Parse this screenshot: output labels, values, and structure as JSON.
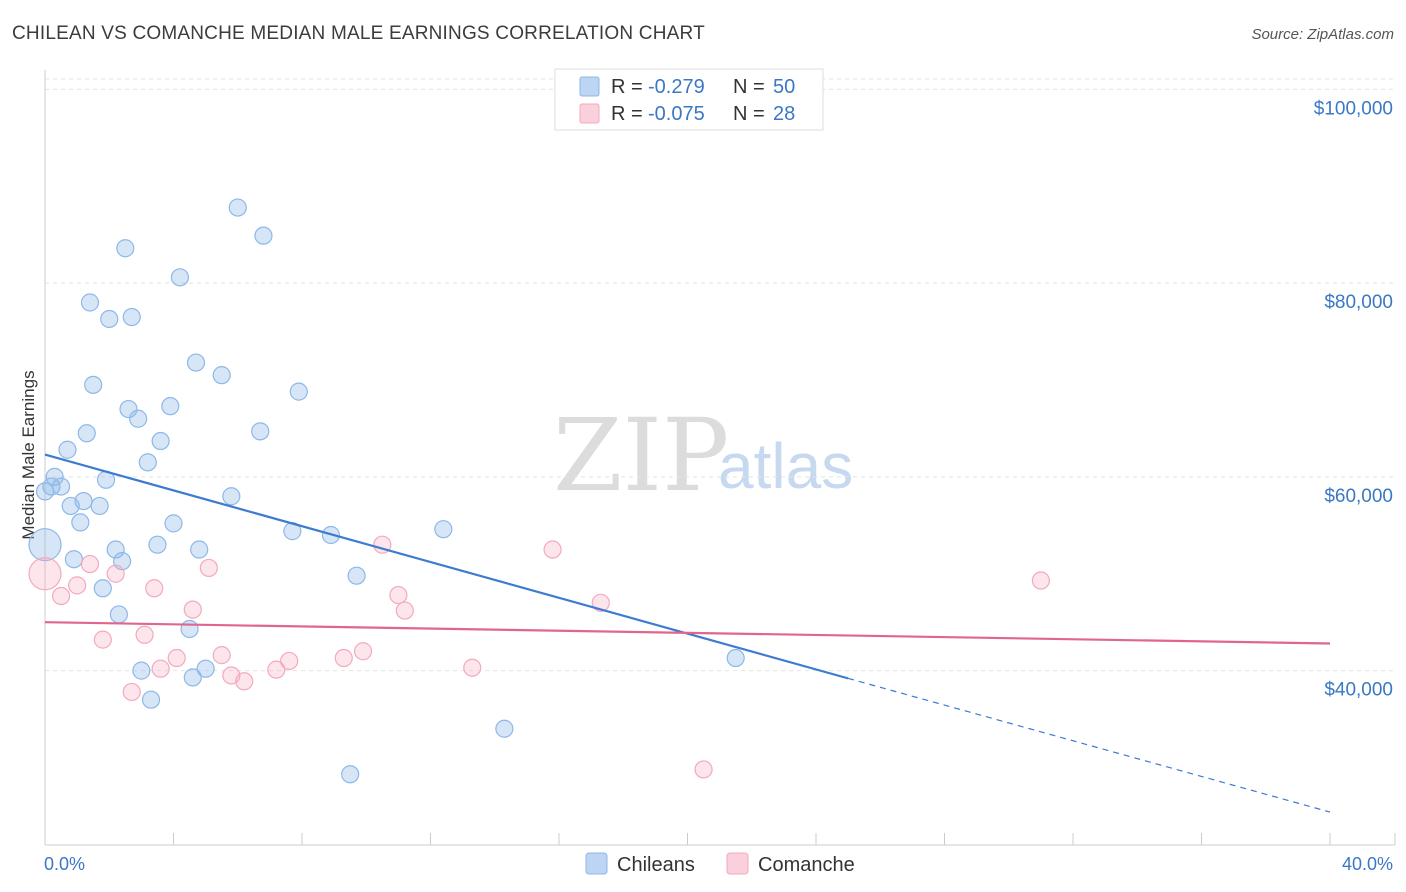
{
  "chart_data": {
    "type": "scatter",
    "title": "CHILEAN VS COMANCHE MEDIAN MALE EARNINGS CORRELATION CHART",
    "source": "Source: ZipAtlas.com",
    "xlabel": "",
    "ylabel": "Median Male Earnings",
    "xlim": [
      0,
      40
    ],
    "ylim": [
      22000,
      102000
    ],
    "x_tick_labels": [
      "0.0%",
      "40.0%"
    ],
    "y_ticks": [
      40000,
      60000,
      80000,
      100000
    ],
    "y_tick_labels": [
      "$40,000",
      "$60,000",
      "$80,000",
      "$100,000"
    ],
    "watermark": [
      "ZIP",
      "atlas"
    ],
    "legend_box": [
      {
        "r_label": "R =",
        "r_value": "-0.279",
        "n_label": "N =",
        "n_value": "50"
      },
      {
        "r_label": "R =",
        "r_value": "-0.075",
        "n_label": "N =",
        "n_value": "28"
      }
    ],
    "series": [
      {
        "name": "Chileans",
        "color": "#8db8e8",
        "line_color": "#3d7bd1",
        "trend": {
          "x0": 0.0,
          "y0": 62300,
          "x1": 25.0,
          "y1": 39200,
          "dash_x_end": 40.0,
          "dash_y_end": 25400
        },
        "points": [
          [
            0.0,
            53000
          ],
          [
            0.2,
            59000
          ],
          [
            0.3,
            60000
          ],
          [
            0.5,
            59000
          ],
          [
            0.7,
            62800
          ],
          [
            0.8,
            57000
          ],
          [
            0.9,
            51500
          ],
          [
            1.1,
            55300
          ],
          [
            1.2,
            57500
          ],
          [
            1.3,
            64500
          ],
          [
            1.4,
            78000
          ],
          [
            1.5,
            69500
          ],
          [
            1.7,
            57000
          ],
          [
            1.8,
            48500
          ],
          [
            1.9,
            59700
          ],
          [
            2.0,
            76300
          ],
          [
            2.2,
            52500
          ],
          [
            2.3,
            45800
          ],
          [
            2.4,
            51300
          ],
          [
            2.5,
            83600
          ],
          [
            2.6,
            67000
          ],
          [
            2.7,
            76500
          ],
          [
            2.9,
            66000
          ],
          [
            3.0,
            40000
          ],
          [
            3.2,
            61500
          ],
          [
            3.3,
            37000
          ],
          [
            3.5,
            53000
          ],
          [
            3.6,
            63700
          ],
          [
            3.9,
            67300
          ],
          [
            4.0,
            55200
          ],
          [
            4.2,
            80600
          ],
          [
            4.5,
            44300
          ],
          [
            4.6,
            39300
          ],
          [
            4.7,
            71800
          ],
          [
            4.8,
            52500
          ],
          [
            5.0,
            40200
          ],
          [
            5.5,
            70500
          ],
          [
            5.8,
            58000
          ],
          [
            6.0,
            87800
          ],
          [
            6.7,
            64700
          ],
          [
            6.8,
            84900
          ],
          [
            7.7,
            54400
          ],
          [
            7.9,
            68800
          ],
          [
            8.9,
            54000
          ],
          [
            9.5,
            29300
          ],
          [
            9.7,
            49800
          ],
          [
            12.4,
            54600
          ],
          [
            14.3,
            34000
          ],
          [
            21.5,
            41300
          ],
          [
            0.0,
            58500
          ]
        ]
      },
      {
        "name": "Comanche",
        "color": "#f4a9be",
        "line_color": "#e0668e",
        "trend": {
          "x0": 0.0,
          "y0": 45000,
          "x1": 40.0,
          "y1": 42800
        },
        "points": [
          [
            0.0,
            50000
          ],
          [
            0.5,
            47700
          ],
          [
            1.0,
            48800
          ],
          [
            1.4,
            51000
          ],
          [
            1.8,
            43200
          ],
          [
            2.2,
            50000
          ],
          [
            2.7,
            37800
          ],
          [
            3.1,
            43700
          ],
          [
            3.4,
            48500
          ],
          [
            3.6,
            40200
          ],
          [
            4.1,
            41300
          ],
          [
            4.6,
            46300
          ],
          [
            5.1,
            50600
          ],
          [
            5.5,
            41600
          ],
          [
            5.8,
            39500
          ],
          [
            6.2,
            38900
          ],
          [
            7.2,
            40100
          ],
          [
            7.6,
            41000
          ],
          [
            9.3,
            41300
          ],
          [
            9.9,
            42000
          ],
          [
            10.5,
            53000
          ],
          [
            11.0,
            47800
          ],
          [
            11.2,
            46200
          ],
          [
            13.3,
            40300
          ],
          [
            15.8,
            52500
          ],
          [
            17.3,
            47000
          ],
          [
            20.5,
            29800
          ],
          [
            31.0,
            49300
          ]
        ]
      }
    ]
  }
}
